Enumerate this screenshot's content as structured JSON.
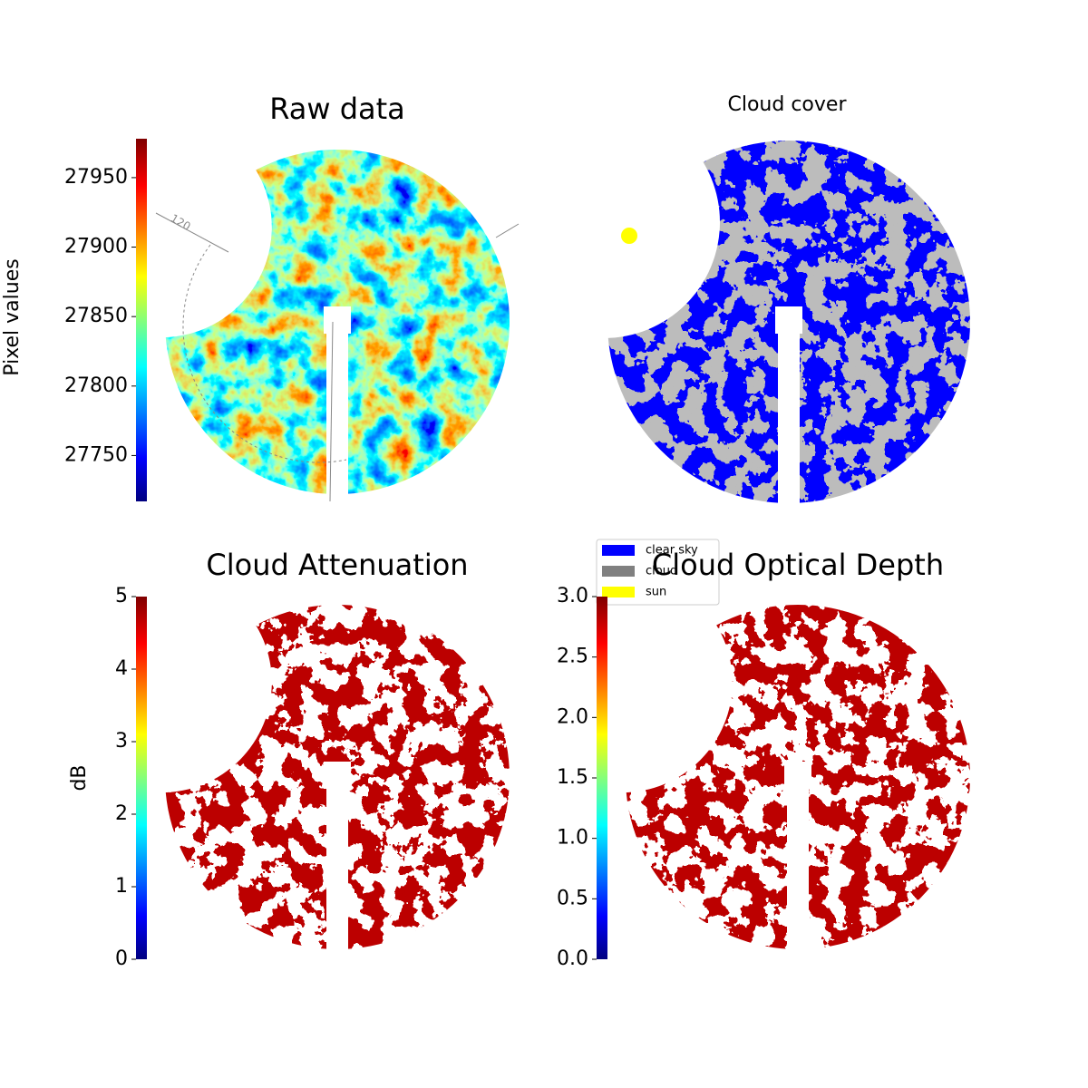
{
  "chart_data": [
    {
      "type": "image",
      "title": "Raw data",
      "annotation": "120",
      "colorbar": {
        "label": "Pixel values",
        "lim": [
          27717,
          27978
        ],
        "ticks": [
          27750,
          27800,
          27850,
          27900,
          27950
        ]
      }
    },
    {
      "type": "image",
      "title": "Cloud cover",
      "series": [
        {
          "name": "clear sky",
          "color": "#0000ff"
        },
        {
          "name": "cloud",
          "color": "#808080"
        },
        {
          "name": "sun",
          "color": "#ffff00"
        }
      ]
    },
    {
      "type": "image",
      "title": "Cloud Attenuation",
      "colorbar": {
        "label": "dB",
        "lim": [
          0,
          5
        ],
        "ticks": [
          0,
          1,
          2,
          3,
          4,
          5
        ]
      }
    },
    {
      "type": "image",
      "title": "Cloud Optical Depth",
      "colorbar": {
        "lim": [
          0,
          3
        ],
        "ticks": [
          {
            "value": 0,
            "label": "0.0"
          },
          0.5,
          {
            "value": 1,
            "label": "1.0"
          },
          1.5,
          {
            "value": 2,
            "label": "2.0"
          },
          2.5,
          {
            "value": 3,
            "label": "3.0"
          }
        ]
      }
    }
  ]
}
